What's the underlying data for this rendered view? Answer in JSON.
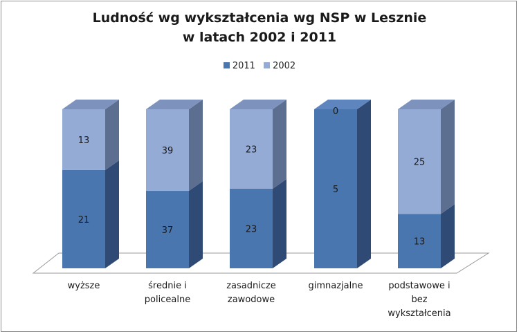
{
  "chart_data": {
    "type": "bar",
    "stacked": true,
    "style": "3d-stacked-100-percent",
    "title": [
      "Ludność wg wykształcenia  wg NSP w Lesznie",
      "w latach 2002 i 2011"
    ],
    "categories": [
      "wyższe",
      "średnie i policealne",
      "zasadnicze zawodowe",
      "gimnazjalne",
      "podstawowe i bez wykształcenia"
    ],
    "category_lines": [
      [
        "wyższe"
      ],
      [
        "średnie i",
        "policealne"
      ],
      [
        "zasadnicze",
        "zawodowe"
      ],
      [
        "gimnazjalne"
      ],
      [
        "podstawowe i",
        "bez",
        "wykształcenia"
      ]
    ],
    "series": [
      {
        "name": "2011",
        "values": [
          21,
          37,
          23,
          5,
          13
        ],
        "color": "#4a76b0"
      },
      {
        "name": "2002",
        "values": [
          13,
          39,
          23,
          0,
          25
        ],
        "color": "#94abd6"
      }
    ],
    "legend_position": "top",
    "grid": false,
    "colors": {
      "s2011_front": "#4a76b0",
      "s2011_side": "#2e4a75",
      "s2011_top": "#5e85bd",
      "s2002_front": "#94abd6",
      "s2002_side": "#5d6f90",
      "s2002_top": "#7d93bd",
      "floor_stroke": "#9a9a9a"
    }
  }
}
